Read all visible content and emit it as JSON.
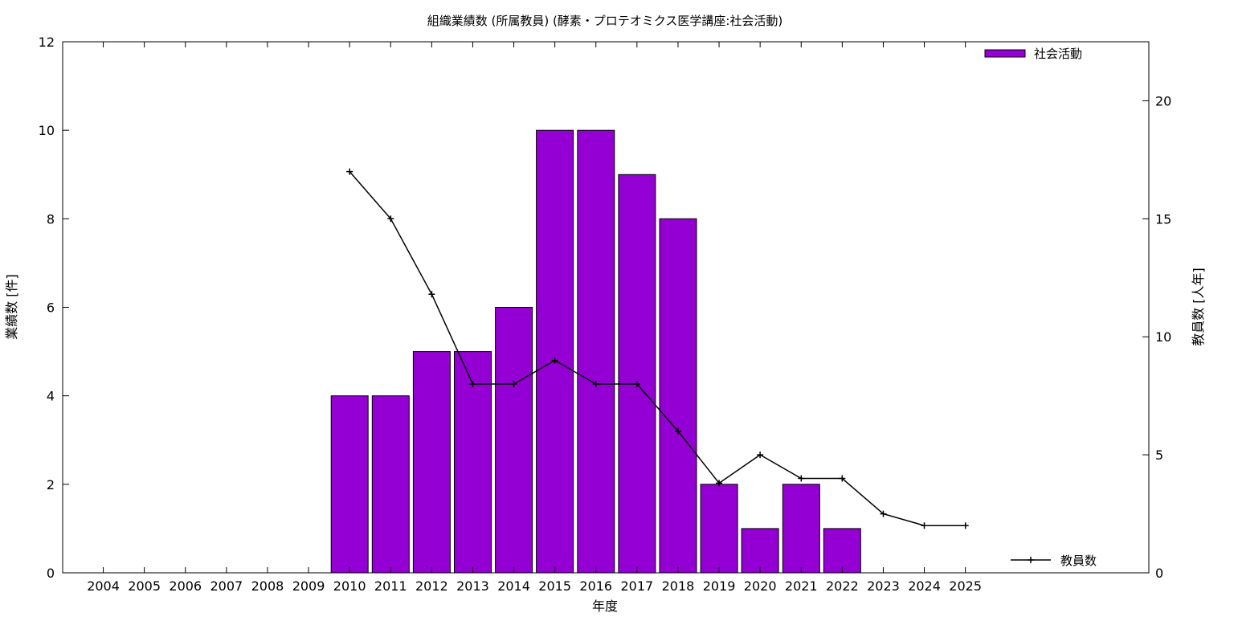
{
  "chart_data": {
    "type": "bar",
    "title": "組織業績数 (所属教員) (酵素・プロテオミクス医学講座:社会活動)",
    "xlabel": "年度",
    "ylabel": "業績数 [件]",
    "y2label": "教員数 [人年]",
    "categories": [
      "2004",
      "2005",
      "2006",
      "2007",
      "2008",
      "2009",
      "2010",
      "2011",
      "2012",
      "2013",
      "2014",
      "2015",
      "2016",
      "2017",
      "2018",
      "2019",
      "2020",
      "2021",
      "2022",
      "2023",
      "2024",
      "2025"
    ],
    "series": [
      {
        "name": "社会活動",
        "type": "bar",
        "axis": "left",
        "color": "#9400d3",
        "values": [
          0,
          0,
          0,
          0,
          0,
          0,
          4,
          4,
          5,
          5,
          6,
          10,
          10,
          9,
          8,
          2,
          1,
          2,
          1,
          0,
          0,
          0
        ]
      },
      {
        "name": "教員数",
        "type": "line",
        "axis": "right",
        "color": "#000000",
        "values": [
          null,
          null,
          null,
          null,
          null,
          null,
          17,
          15,
          11.8,
          8,
          8,
          9,
          8,
          8,
          6,
          3.8,
          5,
          4,
          4,
          2.5,
          2,
          2
        ]
      }
    ],
    "ylim": [
      0,
      12
    ],
    "yticks": [
      0,
      2,
      4,
      6,
      8,
      10,
      12
    ],
    "y2lim": [
      0,
      22.5
    ],
    "y2ticks": [
      0,
      5,
      10,
      15,
      20
    ],
    "grid": false,
    "legend_positions": {
      "bars": "top-right",
      "line": "bottom-right"
    }
  }
}
